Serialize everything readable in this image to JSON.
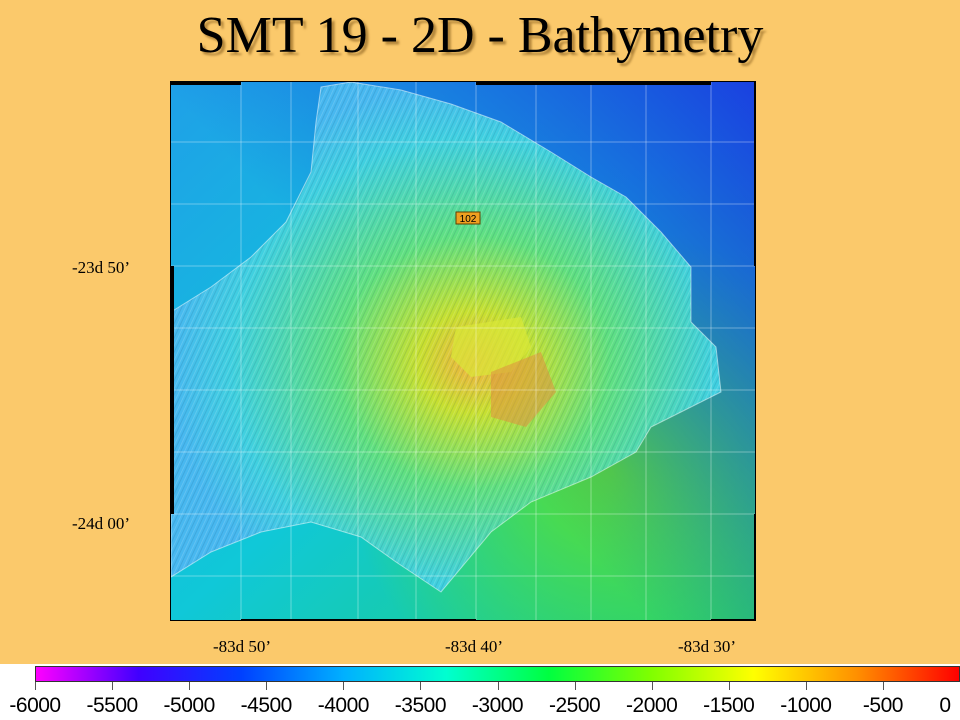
{
  "slide": {
    "title": "SMT 19 - 2D - Bathymetry"
  },
  "map": {
    "marker_label": "102",
    "lat_labels": [
      "-23d 50’",
      "-24d 00’"
    ],
    "lon_labels": [
      "-83d 50’",
      "-83d 40’",
      "-83d 30’"
    ]
  },
  "color_scale": {
    "colors": [
      "#ff00ff",
      "#4000ff",
      "#0040ff",
      "#00b0ff",
      "#00ffd0",
      "#00ff40",
      "#80ff00",
      "#ffff00",
      "#ff9000",
      "#ff0000"
    ],
    "tick_labels": [
      "-6000",
      "-5500",
      "-5000",
      "-4500",
      "-4000",
      "-3500",
      "-3000",
      "-2500",
      "-2000",
      "-1500",
      "-1000",
      "-500",
      "0"
    ]
  }
}
